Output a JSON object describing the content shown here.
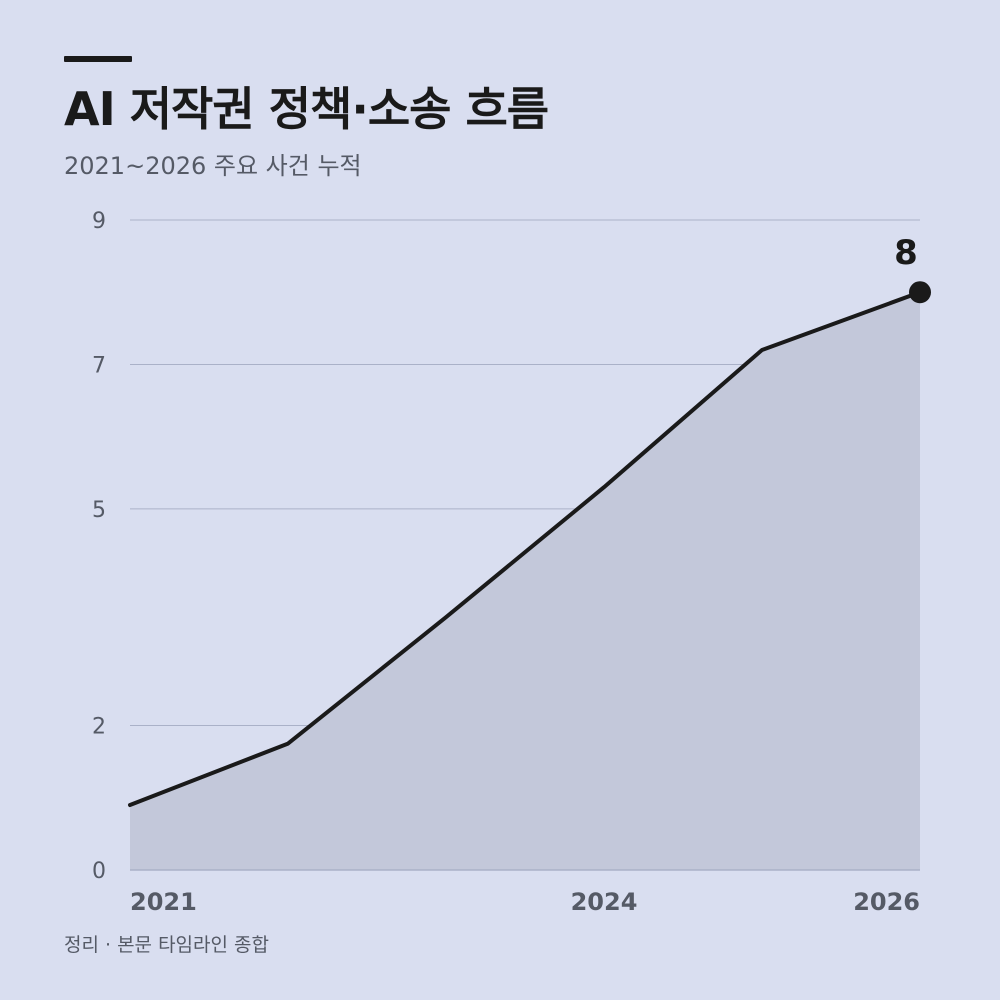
{
  "title": "AI 저작권 정책·소송 흐름",
  "subtitle": "2021~2026 주요 사건 누적",
  "source": "정리 · 본문 타임라인 종합",
  "colors": {
    "background": "#d9def0",
    "area": "#c3c8da",
    "line": "#1a1a1a",
    "grid": "#aab1c8",
    "tick_text": "#555a66"
  },
  "chart_data": {
    "type": "area",
    "x": [
      2021,
      2022,
      2023,
      2024,
      2025,
      2026
    ],
    "values": [
      0.9,
      1.75,
      3.5,
      5.3,
      7.2,
      8
    ],
    "xticks": [
      "2021",
      "2024",
      "2026"
    ],
    "yticks": [
      "0",
      "2",
      "5",
      "7",
      "9"
    ],
    "ylim": [
      0,
      9
    ],
    "xlim": [
      2021,
      2026
    ],
    "end_label": "8",
    "grid": true,
    "legend": "none"
  }
}
